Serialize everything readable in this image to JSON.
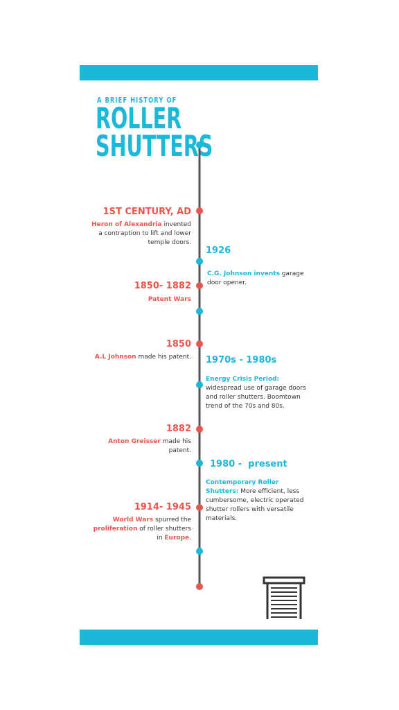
{
  "header": {
    "kicker": "A BRIEF HISTORY OF",
    "title_line1": "ROLLER",
    "title_line2": "SHUTTERS"
  },
  "left_column": [
    {
      "date": "1ST CENTURY, AD",
      "description": [
        {
          "text": "Heron of Alexandria",
          "highlight": true
        },
        {
          "text": " invented a contraption to lift and lower temple doors.",
          "highlight": false
        }
      ]
    },
    {
      "date": "1850- 1882",
      "description": [
        {
          "text": "Patent Wars",
          "highlight": true
        }
      ]
    },
    {
      "date": "1850",
      "description": [
        {
          "text": "A.L Johnson",
          "highlight": true
        },
        {
          "text": " made his patent.",
          "highlight": false
        }
      ]
    },
    {
      "date": "1882",
      "description": [
        {
          "text": "Anton Greisser",
          "highlight": true
        },
        {
          "text": " made his patent.",
          "highlight": false
        }
      ]
    },
    {
      "date": "1914- 1945",
      "description": [
        {
          "text": "World Wars",
          "highlight": true
        },
        {
          "text": " spurred the ",
          "highlight": false
        },
        {
          "text": "proliferation",
          "highlight": true
        },
        {
          "text": " of roller shutters in ",
          "highlight": false
        },
        {
          "text": "Europe",
          "highlight": true
        },
        {
          "text": ".",
          "highlight": false
        }
      ]
    }
  ],
  "right_column": [
    {
      "date": "1926",
      "description": [
        {
          "text": "C.G. Johnson invents",
          "highlight": true
        },
        {
          "text": " garage door opener.",
          "highlight": false
        }
      ]
    },
    {
      "date": "1970s - 1980s",
      "description": [
        {
          "text": "Energy Crisis Period:",
          "highlight": true
        },
        {
          "text": " widespread use of garage doors and roller shutters. Boomtown trend of the 70s and 80s.",
          "highlight": false
        }
      ]
    },
    {
      "date": "1980 -  present",
      "description": [
        {
          "text": "Contemporary Roller Shutters:",
          "highlight": true
        },
        {
          "text": " More efficient, less cumbersome, electric operated shutter rollers with versatile materials.",
          "highlight": false
        }
      ]
    }
  ]
}
